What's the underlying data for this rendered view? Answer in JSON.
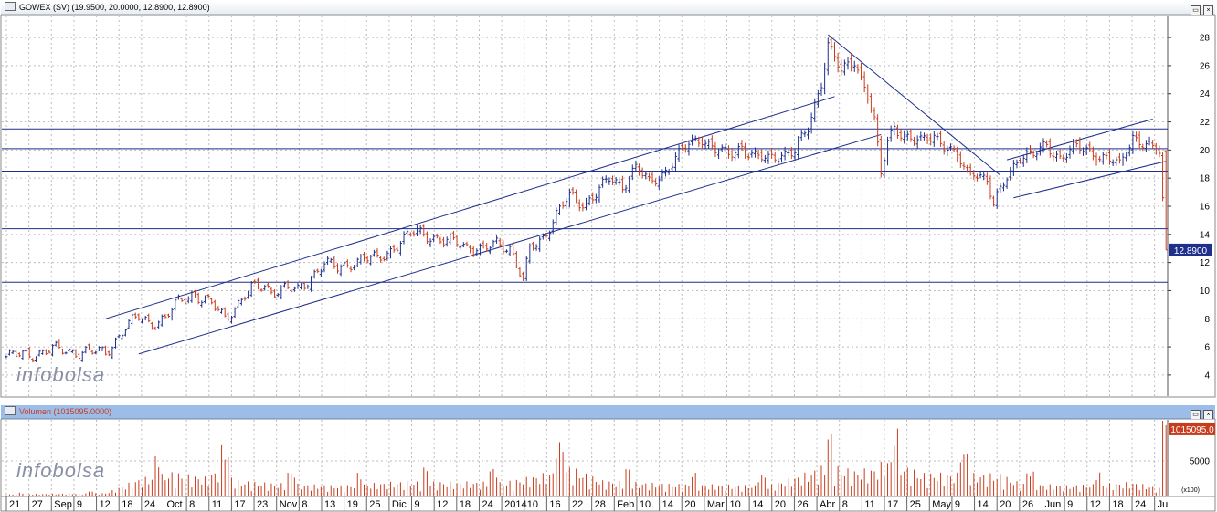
{
  "price_panel": {
    "title": "GOWEX (SV) (19.9500, 20.0000, 12.8900, 12.8900)",
    "last_value_label": "12.8900",
    "watermark": "infobolsa"
  },
  "volume_panel": {
    "title": "Volumen (1015095.0000)",
    "last_value_label": "1015095.0",
    "scale_note": "(x100)",
    "watermark": "infobolsa"
  },
  "window_buttons": {
    "restore": "▭",
    "close": "×"
  },
  "colors": {
    "up_bar": "#1e2f8c",
    "down_bar": "#c83c1e",
    "trend_line": "#1e2f8c",
    "grid": "#bdbdbd",
    "last_label_bg": "#1e2f8c",
    "volume_label_bg": "#c83c1e"
  },
  "chart_data": [
    {
      "type": "ohlc",
      "title": "GOWEX (SV) (19.9500, 20.0000, 12.8900, 12.8900)",
      "xlabel": "",
      "ylabel": "",
      "ylim": [
        2.5,
        29.5
      ],
      "y_ticks": [
        4,
        6,
        8,
        10,
        12,
        14,
        16,
        18,
        20,
        22,
        24,
        26,
        28
      ],
      "x_ticks": [
        "21",
        "27",
        "Sep",
        "9",
        "12",
        "18",
        "24",
        "Oct",
        "8",
        "11",
        "17",
        "23",
        "Nov",
        "8",
        "13",
        "19",
        "25",
        "Dic",
        "9",
        "12",
        "18",
        "24",
        "2014",
        "10",
        "16",
        "22",
        "28",
        "Feb",
        "10",
        "14",
        "20",
        "Mar",
        "10",
        "14",
        "20",
        "26",
        "Abr",
        "8",
        "11",
        "17",
        "25",
        "May",
        "9",
        "14",
        "20",
        "26",
        "Jun",
        "9",
        "12",
        "18",
        "24",
        "Jul"
      ],
      "grid": true,
      "series_path": [
        [
          0,
          5.3
        ],
        [
          8,
          5.5
        ],
        [
          14,
          5.8
        ],
        [
          20,
          5.7
        ],
        [
          26,
          5.6
        ],
        [
          30,
          5.6
        ],
        [
          32,
          6.2
        ],
        [
          36,
          7.4
        ],
        [
          40,
          8.1
        ],
        [
          44,
          7.7
        ],
        [
          48,
          8.0
        ],
        [
          52,
          9.2
        ],
        [
          56,
          9.8
        ],
        [
          60,
          9.3
        ],
        [
          64,
          8.6
        ],
        [
          66,
          8.1
        ],
        [
          70,
          9.1
        ],
        [
          74,
          10.1
        ],
        [
          78,
          10.4
        ],
        [
          80,
          10.0
        ],
        [
          84,
          10.1
        ],
        [
          88,
          10.0
        ],
        [
          92,
          11.0
        ],
        [
          96,
          11.9
        ],
        [
          100,
          11.6
        ],
        [
          104,
          12.0
        ],
        [
          108,
          12.2
        ],
        [
          112,
          12.3
        ],
        [
          116,
          12.9
        ],
        [
          120,
          13.6
        ],
        [
          124,
          14.3
        ],
        [
          128,
          13.9
        ],
        [
          132,
          13.4
        ],
        [
          136,
          13.5
        ],
        [
          140,
          13.1
        ],
        [
          144,
          12.8
        ],
        [
          148,
          13.4
        ],
        [
          152,
          13.1
        ],
        [
          154,
          11.9
        ],
        [
          156,
          10.6
        ],
        [
          158,
          12.9
        ],
        [
          162,
          13.8
        ],
        [
          166,
          15.4
        ],
        [
          170,
          16.7
        ],
        [
          174,
          16.2
        ],
        [
          178,
          16.9
        ],
        [
          182,
          17.9
        ],
        [
          186,
          17.5
        ],
        [
          190,
          18.8
        ],
        [
          194,
          17.6
        ],
        [
          198,
          18.3
        ],
        [
          202,
          19.4
        ],
        [
          206,
          20.4
        ],
        [
          210,
          20.9
        ],
        [
          214,
          20.0
        ],
        [
          218,
          19.6
        ],
        [
          222,
          20.3
        ],
        [
          226,
          19.5
        ],
        [
          230,
          19.3
        ],
        [
          234,
          19.8
        ],
        [
          238,
          19.9
        ],
        [
          242,
          21.5
        ],
        [
          246,
          24.9
        ],
        [
          248,
          27.6
        ],
        [
          252,
          25.5
        ],
        [
          256,
          26.4
        ],
        [
          260,
          24.0
        ],
        [
          262,
          22.0
        ],
        [
          264,
          18.2
        ],
        [
          266,
          20.6
        ],
        [
          268,
          21.7
        ],
        [
          272,
          20.9
        ],
        [
          276,
          20.5
        ],
        [
          280,
          21.1
        ],
        [
          284,
          20.2
        ],
        [
          288,
          19.1
        ],
        [
          290,
          18.2
        ],
        [
          292,
          18.6
        ],
        [
          296,
          17.9
        ],
        [
          298,
          16.0
        ],
        [
          302,
          18.1
        ],
        [
          306,
          19.7
        ],
        [
          310,
          19.6
        ],
        [
          314,
          20.3
        ],
        [
          318,
          19.5
        ],
        [
          322,
          20.1
        ],
        [
          326,
          20.0
        ],
        [
          330,
          19.6
        ],
        [
          334,
          19.2
        ],
        [
          336,
          18.8
        ],
        [
          338,
          19.9
        ],
        [
          340,
          21.0
        ],
        [
          344,
          20.4
        ],
        [
          346,
          20.0
        ],
        [
          348,
          19.8
        ],
        [
          350,
          12.89
        ]
      ],
      "last_close": 12.89,
      "horizontal_lines": [
        21.5,
        20.1,
        18.5,
        14.4,
        10.6
      ],
      "trend_lines": [
        [
          [
            30,
            8.0
          ],
          [
            250,
            23.8
          ]
        ],
        [
          [
            40,
            5.5
          ],
          [
            264,
            21.1
          ]
        ],
        [
          [
            248,
            28.2
          ],
          [
            300,
            18.2
          ]
        ],
        [
          [
            302,
            19.3
          ],
          [
            346,
            22.2
          ]
        ],
        [
          [
            304,
            16.6
          ],
          [
            350,
            19.2
          ]
        ]
      ]
    },
    {
      "type": "bar",
      "title": "Volumen (1015095.0000)",
      "xlabel": "",
      "ylabel": "",
      "ylim": [
        0,
        10800
      ],
      "y_ticks": [
        5000
      ],
      "scale_note": "(x100)",
      "last_value": 10151,
      "series_path": [
        [
          0,
          150
        ],
        [
          30,
          300
        ],
        [
          40,
          2000
        ],
        [
          50,
          2800
        ],
        [
          60,
          2200
        ],
        [
          64,
          3200
        ],
        [
          70,
          1800
        ],
        [
          80,
          1500
        ],
        [
          100,
          1200
        ],
        [
          120,
          1700
        ],
        [
          150,
          1600
        ],
        [
          160,
          2400
        ],
        [
          164,
          2800
        ],
        [
          170,
          3500
        ],
        [
          180,
          1800
        ],
        [
          200,
          1400
        ],
        [
          230,
          1200
        ],
        [
          240,
          2500
        ],
        [
          248,
          3800
        ],
        [
          256,
          3000
        ],
        [
          262,
          3300
        ],
        [
          266,
          4500
        ],
        [
          276,
          2700
        ],
        [
          300,
          2600
        ],
        [
          306,
          1500
        ],
        [
          320,
          1200
        ],
        [
          340,
          1600
        ],
        [
          348,
          900
        ],
        [
          350,
          10151
        ]
      ]
    }
  ]
}
